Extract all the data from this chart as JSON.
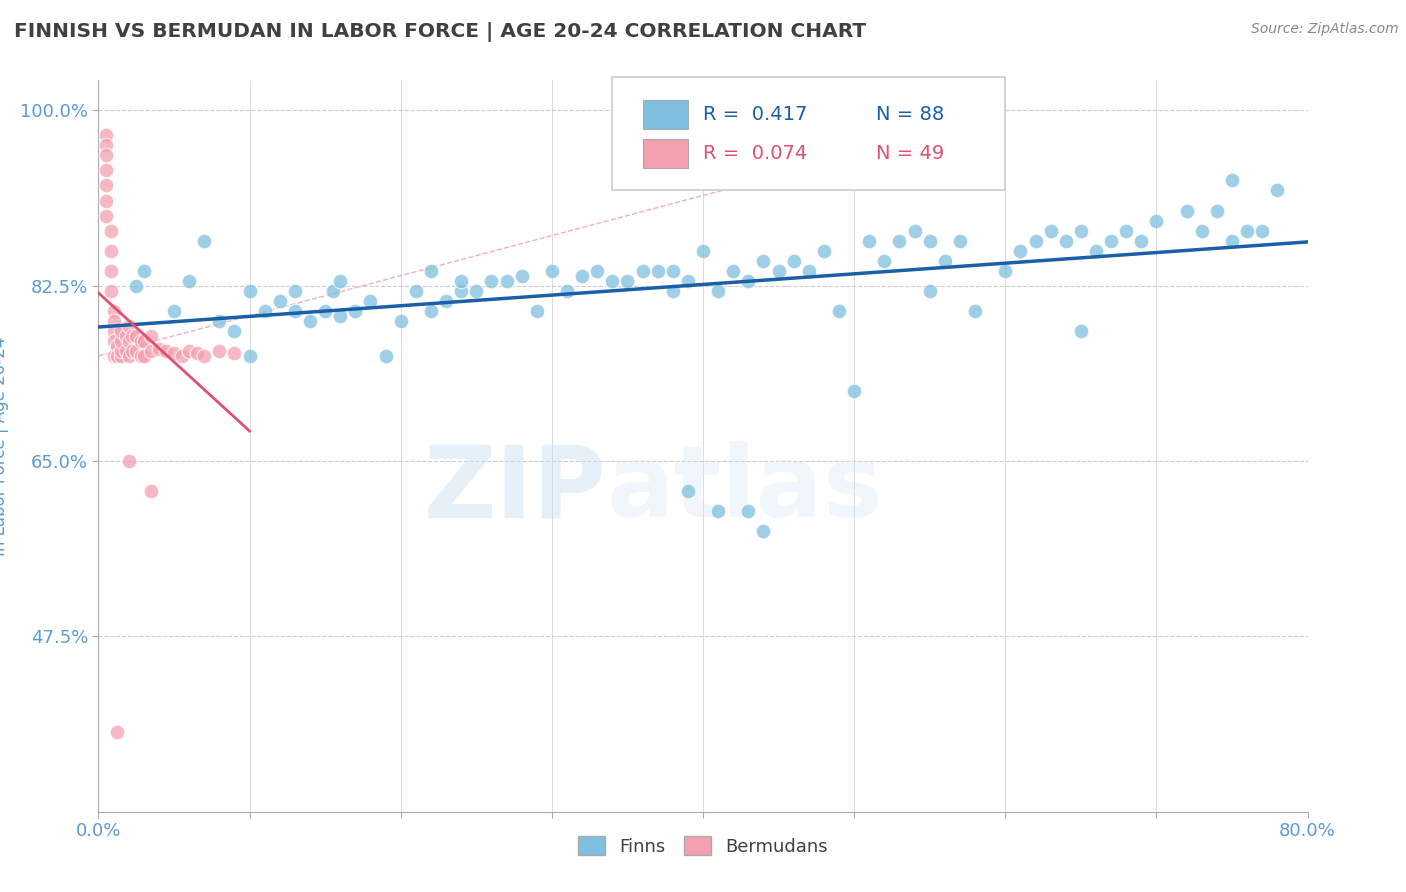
{
  "title": "FINNISH VS BERMUDAN IN LABOR FORCE | AGE 20-24 CORRELATION CHART",
  "source_text": "Source: ZipAtlas.com",
  "ylabel": "In Labor Force | Age 20-24",
  "xlim": [
    0.0,
    0.8
  ],
  "ylim": [
    0.3,
    1.03
  ],
  "yticks": [
    0.475,
    0.65,
    0.825,
    1.0
  ],
  "ytick_labels": [
    "47.5%",
    "65.0%",
    "82.5%",
    "100.0%"
  ],
  "xticks": [
    0.0,
    0.1,
    0.2,
    0.3,
    0.4,
    0.5,
    0.6,
    0.7,
    0.8
  ],
  "xtick_labels": [
    "0.0%",
    "",
    "",
    "",
    "",
    "",
    "",
    "",
    "80.0%"
  ],
  "blue_color": "#7fbfdf",
  "pink_color": "#f4a0b0",
  "line_blue_color": "#1a5fa8",
  "line_pink_color": "#e05070",
  "diag_color": "#e8b0bc",
  "title_color": "#404040",
  "axis_label_color": "#5b9bd5",
  "tick_label_color": "#5b9bd5",
  "grid_color": "#cccccc",
  "background_color": "#ffffff",
  "finns_x": [
    0.025,
    0.03,
    0.05,
    0.06,
    0.07,
    0.08,
    0.09,
    0.1,
    0.1,
    0.11,
    0.12,
    0.13,
    0.13,
    0.14,
    0.15,
    0.155,
    0.16,
    0.16,
    0.17,
    0.18,
    0.19,
    0.2,
    0.21,
    0.22,
    0.22,
    0.23,
    0.24,
    0.24,
    0.25,
    0.26,
    0.27,
    0.28,
    0.29,
    0.3,
    0.31,
    0.32,
    0.33,
    0.34,
    0.35,
    0.36,
    0.37,
    0.38,
    0.38,
    0.39,
    0.4,
    0.41,
    0.42,
    0.43,
    0.44,
    0.45,
    0.46,
    0.47,
    0.48,
    0.49,
    0.5,
    0.51,
    0.52,
    0.53,
    0.54,
    0.55,
    0.55,
    0.56,
    0.57,
    0.58,
    0.6,
    0.61,
    0.62,
    0.63,
    0.64,
    0.65,
    0.65,
    0.66,
    0.67,
    0.68,
    0.69,
    0.7,
    0.72,
    0.73,
    0.74,
    0.75,
    0.75,
    0.76,
    0.77,
    0.78,
    0.39,
    0.41,
    0.43,
    0.44
  ],
  "finns_y": [
    0.825,
    0.84,
    0.8,
    0.83,
    0.87,
    0.79,
    0.78,
    0.82,
    0.755,
    0.8,
    0.81,
    0.82,
    0.8,
    0.79,
    0.8,
    0.82,
    0.83,
    0.795,
    0.8,
    0.81,
    0.755,
    0.79,
    0.82,
    0.8,
    0.84,
    0.81,
    0.82,
    0.83,
    0.82,
    0.83,
    0.83,
    0.835,
    0.8,
    0.84,
    0.82,
    0.835,
    0.84,
    0.83,
    0.83,
    0.84,
    0.84,
    0.84,
    0.82,
    0.83,
    0.86,
    0.82,
    0.84,
    0.83,
    0.85,
    0.84,
    0.85,
    0.84,
    0.86,
    0.8,
    0.72,
    0.87,
    0.85,
    0.87,
    0.88,
    0.87,
    0.82,
    0.85,
    0.87,
    0.8,
    0.84,
    0.86,
    0.87,
    0.88,
    0.87,
    0.88,
    0.78,
    0.86,
    0.87,
    0.88,
    0.87,
    0.89,
    0.9,
    0.88,
    0.9,
    0.87,
    0.93,
    0.88,
    0.88,
    0.92,
    0.62,
    0.6,
    0.6,
    0.58
  ],
  "bermudans_x": [
    0.005,
    0.005,
    0.005,
    0.005,
    0.005,
    0.005,
    0.005,
    0.008,
    0.008,
    0.008,
    0.008,
    0.01,
    0.01,
    0.01,
    0.01,
    0.01,
    0.012,
    0.012,
    0.015,
    0.015,
    0.015,
    0.015,
    0.018,
    0.018,
    0.02,
    0.02,
    0.02,
    0.022,
    0.022,
    0.025,
    0.025,
    0.028,
    0.028,
    0.03,
    0.03,
    0.035,
    0.035,
    0.04,
    0.045,
    0.05,
    0.055,
    0.06,
    0.065,
    0.07,
    0.08,
    0.09,
    0.02,
    0.035,
    0.012
  ],
  "bermudans_y": [
    0.975,
    0.965,
    0.955,
    0.94,
    0.925,
    0.91,
    0.895,
    0.88,
    0.86,
    0.84,
    0.82,
    0.8,
    0.79,
    0.78,
    0.77,
    0.755,
    0.765,
    0.755,
    0.755,
    0.76,
    0.77,
    0.78,
    0.76,
    0.775,
    0.755,
    0.77,
    0.785,
    0.76,
    0.775,
    0.76,
    0.775,
    0.755,
    0.77,
    0.755,
    0.77,
    0.76,
    0.775,
    0.762,
    0.76,
    0.758,
    0.755,
    0.76,
    0.758,
    0.755,
    0.76,
    0.758,
    0.65,
    0.62,
    0.38
  ]
}
